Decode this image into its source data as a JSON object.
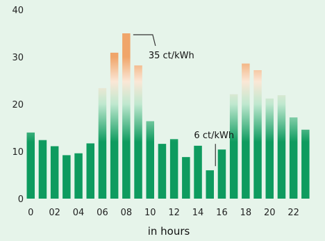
{
  "chart_data": {
    "type": "bar",
    "xlabel": "in hours",
    "ylim": [
      0,
      40
    ],
    "y_ticks": [
      0,
      10,
      20,
      30,
      40
    ],
    "x_tick_labels": [
      "0",
      "02",
      "04",
      "06",
      "08",
      "10",
      "12",
      "14",
      "16",
      "18",
      "20",
      "22"
    ],
    "categories": [
      "0",
      "1",
      "2",
      "3",
      "4",
      "5",
      "6",
      "7",
      "8",
      "9",
      "10",
      "11",
      "12",
      "13",
      "14",
      "15",
      "16",
      "17",
      "18",
      "19",
      "20",
      "21",
      "22",
      "23"
    ],
    "values": [
      14,
      12.4,
      11.1,
      9.2,
      9.6,
      11.7,
      23.4,
      30.9,
      35.0,
      28.2,
      16.4,
      11.6,
      12.6,
      8.8,
      11.2,
      6.0,
      10.4,
      22.1,
      28.6,
      27.2,
      21.2,
      21.9,
      17.2,
      14.6
    ],
    "grid": false,
    "legend": "none",
    "colors": {
      "low": "#0e9b5f",
      "high": "#f0a56a",
      "background": "#e6f4ea",
      "annotation_line": "#333333"
    },
    "annotations": [
      {
        "text": "35 ct/kWh",
        "category": "8",
        "value": 35
      },
      {
        "text": "6 ct/kWh",
        "category": "15",
        "value": 6
      }
    ]
  }
}
